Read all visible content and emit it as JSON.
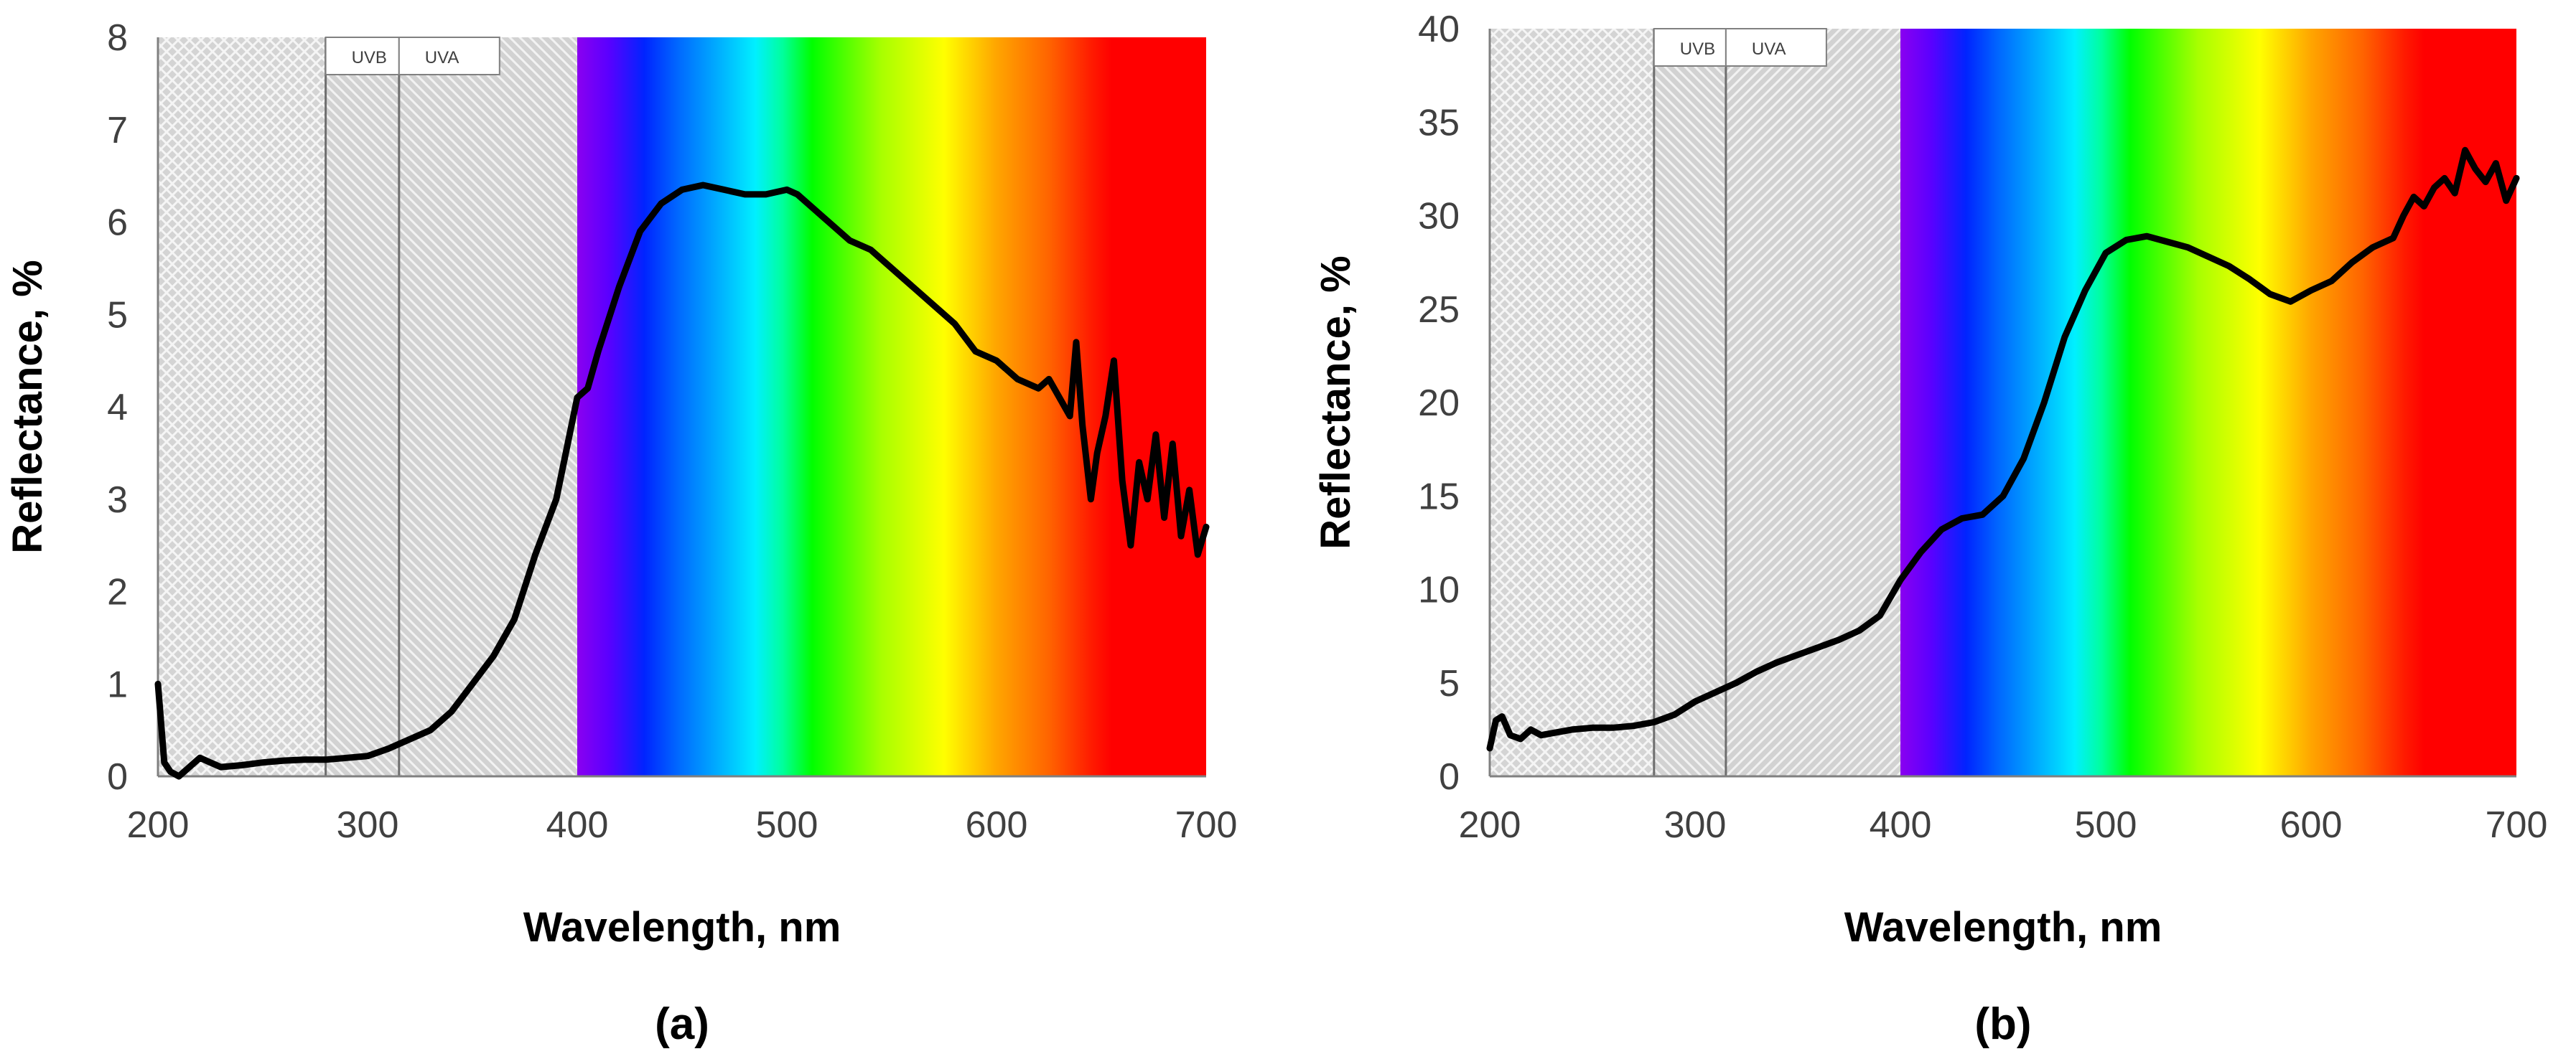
{
  "colors": {
    "curve": "#000000",
    "axis": "#808080",
    "uv_fill": "#d6d6d6",
    "uv_hatch": "#f4f4f4",
    "spectrum": [
      {
        "nm": 400,
        "color": "#8a00f0"
      },
      {
        "nm": 415,
        "color": "#5a00ff"
      },
      {
        "nm": 432,
        "color": "#0024ff"
      },
      {
        "nm": 448,
        "color": "#0068ff"
      },
      {
        "nm": 470,
        "color": "#00b8ff"
      },
      {
        "nm": 485,
        "color": "#00f0ff"
      },
      {
        "nm": 498,
        "color": "#00ff9c"
      },
      {
        "nm": 512,
        "color": "#00ff00"
      },
      {
        "nm": 545,
        "color": "#a8ff00"
      },
      {
        "nm": 575,
        "color": "#ffff00"
      },
      {
        "nm": 600,
        "color": "#ffa500"
      },
      {
        "nm": 625,
        "color": "#ff6400"
      },
      {
        "nm": 645,
        "color": "#ff1c00"
      },
      {
        "nm": 655,
        "color": "#ff0000"
      },
      {
        "nm": 700,
        "color": "#ff0000"
      }
    ]
  },
  "chart_data": [
    {
      "type": "line",
      "panel_label": "(a)",
      "xlabel": "Wavelength, nm",
      "ylabel": "Reflectance, %",
      "xlim": [
        200,
        700
      ],
      "ylim": [
        0,
        8
      ],
      "xticks": [
        200,
        300,
        400,
        500,
        600,
        700
      ],
      "yticks": [
        0,
        1,
        2,
        3,
        4,
        5,
        6,
        7,
        8
      ],
      "uv_bands": [
        {
          "label": "",
          "from": 200,
          "to": 280
        },
        {
          "label": "UVB",
          "from": 280,
          "to": 315
        },
        {
          "label": "UVA",
          "from": 315,
          "to": 400
        }
      ],
      "visible_range": [
        400,
        700
      ],
      "series": [
        {
          "name": "Reflectance",
          "x": [
            200,
            203,
            206,
            210,
            215,
            220,
            225,
            230,
            240,
            250,
            260,
            270,
            280,
            290,
            300,
            310,
            320,
            330,
            340,
            350,
            360,
            370,
            380,
            390,
            400,
            405,
            410,
            420,
            430,
            440,
            450,
            460,
            470,
            480,
            490,
            500,
            505,
            510,
            520,
            530,
            540,
            550,
            560,
            570,
            580,
            590,
            600,
            610,
            620,
            625,
            630,
            635,
            638,
            641,
            645,
            648,
            652,
            656,
            660,
            664,
            668,
            672,
            676,
            680,
            684,
            688,
            692,
            696,
            700
          ],
          "y": [
            1.0,
            0.15,
            0.05,
            0.0,
            0.1,
            0.2,
            0.15,
            0.1,
            0.12,
            0.15,
            0.17,
            0.18,
            0.18,
            0.2,
            0.22,
            0.3,
            0.4,
            0.5,
            0.7,
            1.0,
            1.3,
            1.7,
            2.4,
            3.0,
            4.1,
            4.2,
            4.6,
            5.3,
            5.9,
            6.2,
            6.35,
            6.4,
            6.35,
            6.3,
            6.3,
            6.35,
            6.3,
            6.2,
            6.0,
            5.8,
            5.7,
            5.5,
            5.3,
            5.1,
            4.9,
            4.6,
            4.5,
            4.3,
            4.2,
            4.3,
            4.1,
            3.9,
            4.7,
            3.8,
            3.0,
            3.5,
            3.9,
            4.5,
            3.2,
            2.5,
            3.4,
            3.0,
            3.7,
            2.8,
            3.6,
            2.6,
            3.1,
            2.4,
            2.7
          ]
        }
      ]
    },
    {
      "type": "line",
      "panel_label": "(b)",
      "xlabel": "Wavelength, nm",
      "ylabel": "Reflectance, %",
      "xlim": [
        200,
        700
      ],
      "ylim": [
        0,
        40
      ],
      "xticks": [
        200,
        300,
        400,
        500,
        600,
        700
      ],
      "yticks": [
        0,
        5,
        10,
        15,
        20,
        25,
        30,
        35,
        40
      ],
      "uv_bands": [
        {
          "label": "",
          "from": 200,
          "to": 280
        },
        {
          "label": "UVB",
          "from": 280,
          "to": 315
        },
        {
          "label": "UVA",
          "from": 315,
          "to": 400
        }
      ],
      "visible_range": [
        400,
        700
      ],
      "series": [
        {
          "name": "Reflectance",
          "x": [
            200,
            203,
            206,
            210,
            215,
            220,
            225,
            230,
            240,
            250,
            260,
            270,
            280,
            290,
            300,
            310,
            320,
            330,
            340,
            350,
            360,
            370,
            380,
            390,
            400,
            410,
            420,
            430,
            440,
            450,
            460,
            470,
            480,
            490,
            500,
            510,
            520,
            530,
            540,
            550,
            560,
            570,
            580,
            590,
            600,
            610,
            620,
            630,
            640,
            645,
            650,
            655,
            660,
            665,
            670,
            675,
            680,
            685,
            690,
            695,
            700
          ],
          "y": [
            1.5,
            3.0,
            3.2,
            2.2,
            2.0,
            2.5,
            2.2,
            2.3,
            2.5,
            2.6,
            2.6,
            2.7,
            2.9,
            3.3,
            4.0,
            4.5,
            5.0,
            5.6,
            6.1,
            6.5,
            6.9,
            7.3,
            7.8,
            8.6,
            10.5,
            12.0,
            13.2,
            13.8,
            14.0,
            15.0,
            17.0,
            20.0,
            23.5,
            26.0,
            28.0,
            28.7,
            28.9,
            28.6,
            28.3,
            27.8,
            27.3,
            26.6,
            25.8,
            25.4,
            26.0,
            26.5,
            27.5,
            28.3,
            28.8,
            30.0,
            31.0,
            30.5,
            31.5,
            32.0,
            31.2,
            33.5,
            32.5,
            31.8,
            32.8,
            30.8,
            32.0
          ]
        }
      ]
    }
  ]
}
